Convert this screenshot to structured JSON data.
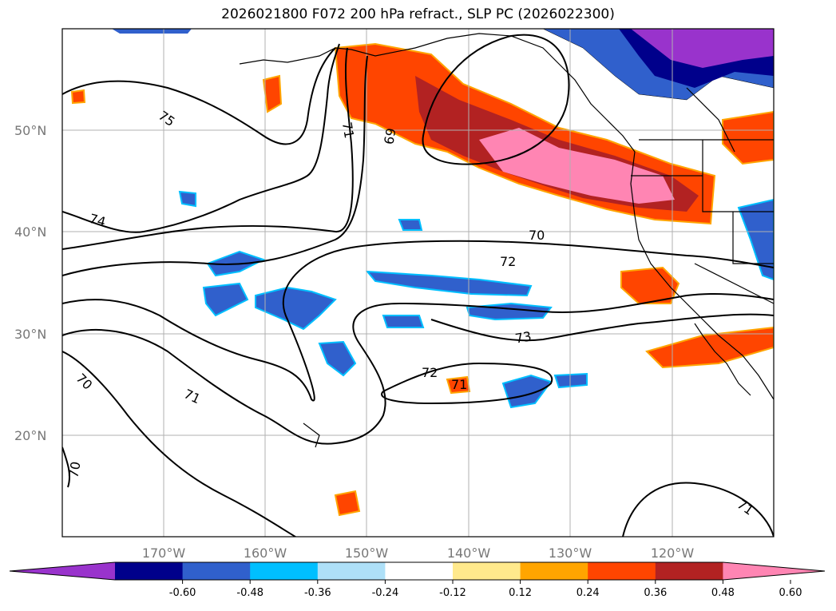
{
  "title": "2026021800 F072 200 hPa refract., SLP PC (2026022300)",
  "latitude_labels": [
    "50°N",
    "40°N",
    "30°N",
    "20°N"
  ],
  "longitude_labels": [
    "170°W",
    "160°W",
    "150°W",
    "140°W",
    "130°W",
    "120°W"
  ],
  "contour_labels": [
    "75",
    "74",
    "71",
    "69",
    "70",
    "72",
    "73",
    "72",
    "71",
    "70",
    "71",
    "70",
    "71"
  ],
  "colorbar": {
    "tick_labels": [
      "-0.60",
      "-0.48",
      "-0.36",
      "-0.24",
      "-0.12",
      "0.12",
      "0.24",
      "0.36",
      "0.48",
      "0.60"
    ],
    "colors": [
      "#9933cc",
      "#00008b",
      "#3060cc",
      "#00bfff",
      "#aee0f8",
      "#ffffff",
      "#ffe98c",
      "#ffa500",
      "#ff4500",
      "#b22222",
      "#ff85b3"
    ]
  }
}
